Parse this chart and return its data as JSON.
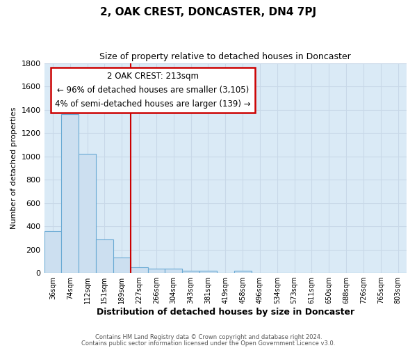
{
  "title": "2, OAK CREST, DONCASTER, DN4 7PJ",
  "subtitle": "Size of property relative to detached houses in Doncaster",
  "xlabel": "Distribution of detached houses by size in Doncaster",
  "ylabel": "Number of detached properties",
  "bar_color": "#ccdff0",
  "bar_edge_color": "#6aaad4",
  "background_color": "#daeaf6",
  "grid_color": "#c8d8e8",
  "fig_background": "#ffffff",
  "categories": [
    "36sqm",
    "74sqm",
    "112sqm",
    "151sqm",
    "189sqm",
    "227sqm",
    "266sqm",
    "304sqm",
    "343sqm",
    "381sqm",
    "419sqm",
    "458sqm",
    "496sqm",
    "534sqm",
    "573sqm",
    "611sqm",
    "650sqm",
    "688sqm",
    "726sqm",
    "765sqm",
    "803sqm"
  ],
  "values": [
    360,
    1360,
    1020,
    285,
    130,
    50,
    35,
    35,
    20,
    20,
    0,
    20,
    0,
    0,
    0,
    0,
    0,
    0,
    0,
    0,
    0
  ],
  "ylim": [
    0,
    1800
  ],
  "yticks": [
    0,
    200,
    400,
    600,
    800,
    1000,
    1200,
    1400,
    1600,
    1800
  ],
  "red_line_index": 5,
  "annotation_title": "2 OAK CREST: 213sqm",
  "annotation_line1": "← 96% of detached houses are smaller (3,105)",
  "annotation_line2": "4% of semi-detached houses are larger (139) →",
  "annotation_box_color": "#ffffff",
  "annotation_border_color": "#cc0000",
  "footer1": "Contains HM Land Registry data © Crown copyright and database right 2024.",
  "footer2": "Contains public sector information licensed under the Open Government Licence v3.0."
}
